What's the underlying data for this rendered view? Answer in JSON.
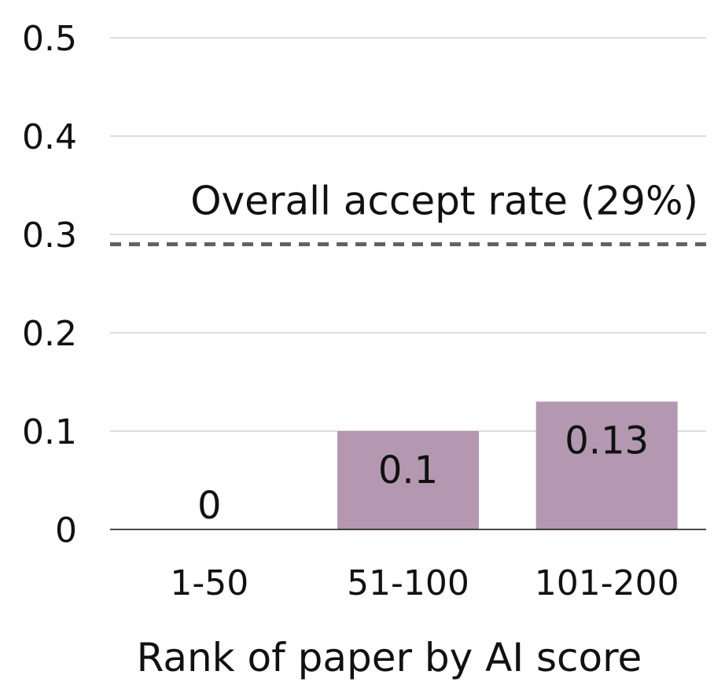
{
  "chart_data": {
    "type": "bar",
    "categories": [
      "1-50",
      "51-100",
      "101-200"
    ],
    "values": [
      0,
      0.1,
      0.13
    ],
    "data_labels": [
      "0",
      "0.1",
      "0.13"
    ],
    "title": "",
    "xlabel": "Rank of paper by AI score",
    "ylabel": "",
    "ylim": [
      0,
      0.5
    ],
    "yticks": [
      0,
      0.1,
      0.2,
      0.3,
      0.4,
      0.5
    ],
    "ytick_labels": [
      "0",
      "0.1",
      "0.2",
      "0.3",
      "0.4",
      "0.5"
    ],
    "grid": true,
    "legend": "none",
    "reference_line": {
      "value": 0.29,
      "label": "Overall accept rate (29%)",
      "style": "dashed"
    },
    "colors": {
      "bar": "#b497b0",
      "grid": "#c8c8c8",
      "axis": "#111111",
      "reference": "#5f6368",
      "text": "#111111"
    }
  }
}
